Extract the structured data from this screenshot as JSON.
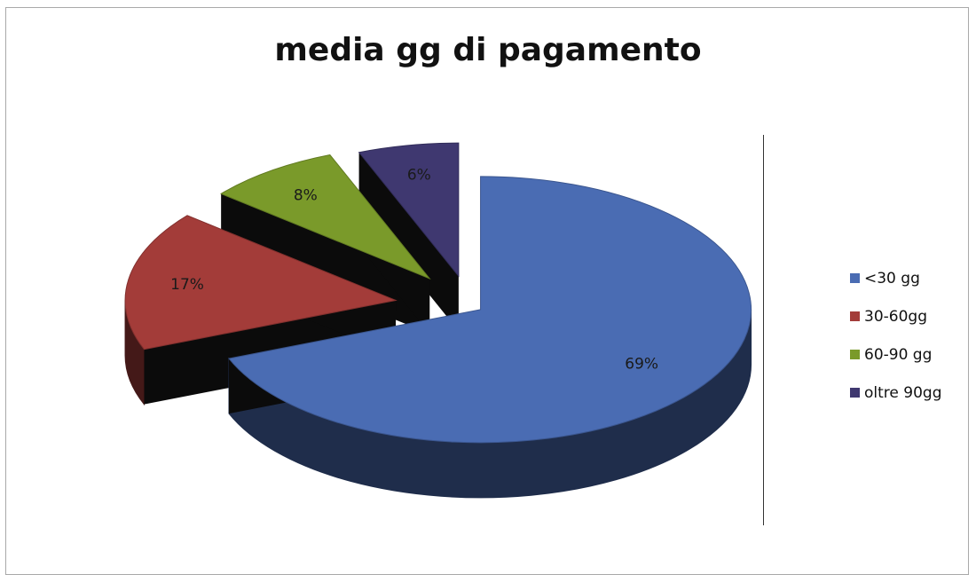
{
  "chart_data": {
    "type": "pie",
    "title": "media gg di pagamento",
    "categories": [
      "<30 gg",
      "30-60gg",
      "60-90 gg",
      "oltre 90gg"
    ],
    "values": [
      69,
      17,
      8,
      6
    ],
    "data_labels": [
      "69%",
      "17%",
      "8%",
      "6%"
    ],
    "colors": [
      "#4a6cb3",
      "#a33c39",
      "#7a9a2a",
      "#3f3870"
    ],
    "legend_position": "right",
    "exploded": true,
    "style": "3d"
  }
}
